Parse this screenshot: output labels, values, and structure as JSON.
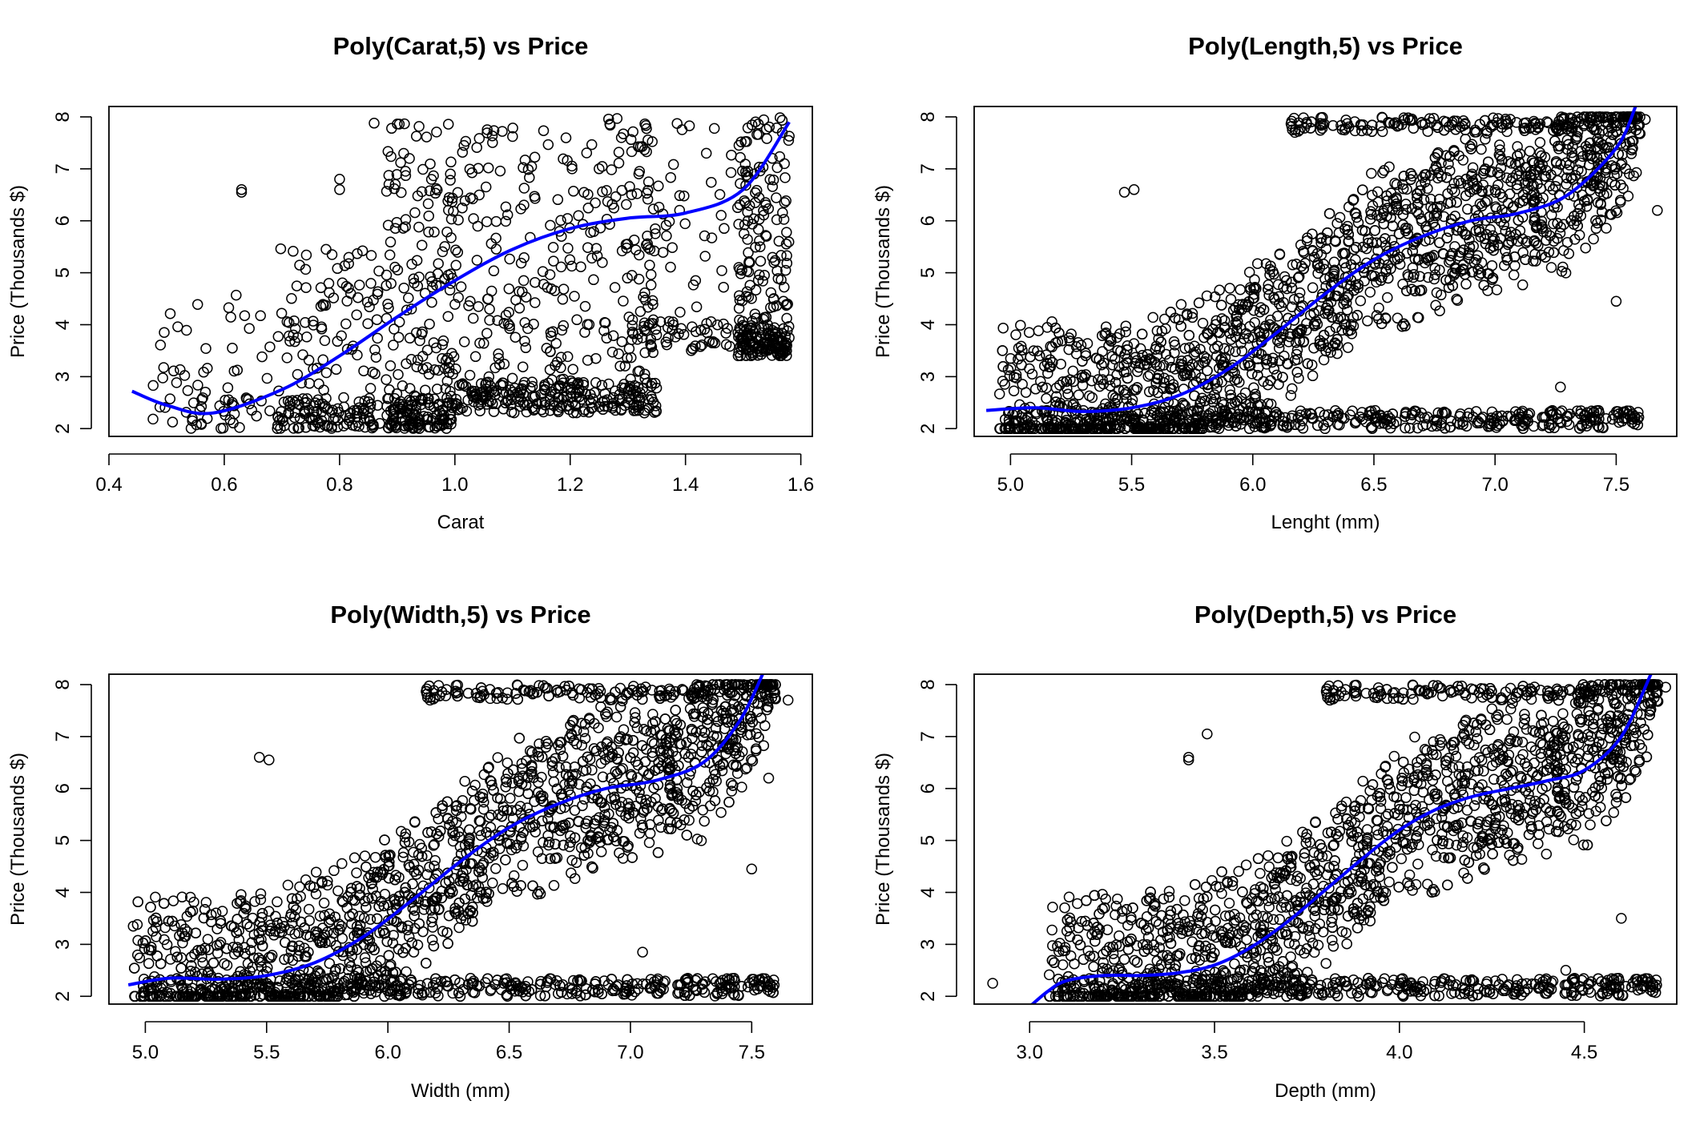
{
  "figure": {
    "background": "#ffffff",
    "point_color": "#000000",
    "fit_color": "#0000ff"
  },
  "chart_data": [
    {
      "type": "scatter",
      "title": "Poly(Carat,5) vs Price",
      "xlabel": "Carat",
      "ylabel": "Price (Thousands $)",
      "xlim": [
        0.4,
        1.62
      ],
      "ylim": [
        1.85,
        8.2
      ],
      "xticks": [
        "0.4",
        "0.6",
        "0.8",
        "1.0",
        "1.2",
        "1.4",
        "1.6"
      ],
      "yticks": [
        "2",
        "3",
        "4",
        "5",
        "6",
        "7",
        "8"
      ],
      "fit": {
        "name": "poly degree 5",
        "x": [
          0.44,
          0.5,
          0.58,
          0.7,
          0.8,
          0.9,
          1.0,
          1.1,
          1.2,
          1.3,
          1.4,
          1.5,
          1.58
        ],
        "y": [
          2.72,
          2.45,
          2.3,
          2.75,
          3.4,
          4.15,
          4.85,
          5.45,
          5.85,
          6.05,
          6.15,
          6.6,
          7.9
        ]
      },
      "clusters": [
        {
          "x": [
            0.47,
            0.68
          ],
          "y": [
            2.0,
            4.6
          ],
          "density": 0.08
        },
        {
          "x": [
            0.69,
            0.87
          ],
          "y": [
            2.0,
            5.5
          ],
          "density": 0.22
        },
        {
          "x": [
            0.88,
            1.0
          ],
          "y": [
            2.0,
            7.9
          ],
          "density": 0.3
        },
        {
          "x": [
            1.0,
            1.35
          ],
          "y": [
            2.3,
            8.0
          ],
          "density": 0.55
        },
        {
          "x": [
            1.3,
            1.48
          ],
          "y": [
            3.5,
            8.0
          ],
          "density": 0.12
        },
        {
          "x": [
            1.49,
            1.58
          ],
          "y": [
            3.4,
            8.0
          ],
          "density": 0.3
        }
      ],
      "outliers": [
        [
          0.63,
          6.6
        ],
        [
          0.63,
          6.55
        ],
        [
          0.86,
          7.88
        ],
        [
          0.8,
          6.8
        ],
        [
          0.8,
          6.6
        ],
        [
          1.57,
          4.45
        ],
        [
          1.3,
          2.5
        ]
      ]
    },
    {
      "type": "scatter",
      "title": "Poly(Length,5) vs Price",
      "xlabel": "Lenght (mm)",
      "ylabel": "Price (Thousands $)",
      "xlim": [
        4.85,
        7.75
      ],
      "ylim": [
        1.85,
        8.2
      ],
      "xticks": [
        "5.0",
        "5.5",
        "6.0",
        "6.5",
        "7.0",
        "7.5"
      ],
      "yticks": [
        "2",
        "3",
        "4",
        "5",
        "6",
        "7",
        "8"
      ],
      "fit": {
        "name": "poly degree 5",
        "x": [
          4.9,
          5.1,
          5.3,
          5.5,
          5.7,
          5.9,
          6.1,
          6.3,
          6.5,
          6.7,
          6.9,
          7.1,
          7.3,
          7.5,
          7.58
        ],
        "y": [
          2.35,
          2.4,
          2.33,
          2.4,
          2.65,
          3.15,
          3.85,
          4.6,
          5.25,
          5.7,
          6.0,
          6.15,
          6.5,
          7.4,
          8.2
        ]
      },
      "band": {
        "x_start": 4.95,
        "x_end": 7.6,
        "low_offset": -1.2,
        "high_offset": 1.4,
        "density": 1.0
      },
      "outliers": [
        [
          5.47,
          6.55
        ],
        [
          5.51,
          6.6
        ],
        [
          5.0,
          3.35
        ],
        [
          7.27,
          2.8
        ],
        [
          7.5,
          4.45
        ],
        [
          7.67,
          6.2
        ],
        [
          7.62,
          7.95
        ]
      ]
    },
    {
      "type": "scatter",
      "title": "Poly(Width,5) vs Price",
      "xlabel": "Width (mm)",
      "ylabel": "Price (Thousands $)",
      "xlim": [
        4.85,
        7.75
      ],
      "ylim": [
        1.85,
        8.2
      ],
      "xticks": [
        "5.0",
        "5.5",
        "6.0",
        "6.5",
        "7.0",
        "7.5"
      ],
      "yticks": [
        "2",
        "3",
        "4",
        "5",
        "6",
        "7",
        "8"
      ],
      "fit": {
        "name": "poly degree 5",
        "x": [
          4.93,
          5.1,
          5.3,
          5.5,
          5.7,
          5.9,
          6.1,
          6.3,
          6.5,
          6.7,
          6.9,
          7.1,
          7.3,
          7.45,
          7.55
        ],
        "y": [
          2.22,
          2.35,
          2.33,
          2.4,
          2.65,
          3.15,
          3.85,
          4.6,
          5.25,
          5.7,
          6.0,
          6.15,
          6.5,
          7.3,
          8.25
        ]
      },
      "band": {
        "x_start": 4.95,
        "x_end": 7.6,
        "low_offset": -1.2,
        "high_offset": 1.4,
        "density": 1.0
      },
      "outliers": [
        [
          5.47,
          6.6
        ],
        [
          5.51,
          6.55
        ],
        [
          4.95,
          3.35
        ],
        [
          7.05,
          2.85
        ],
        [
          7.5,
          4.45
        ],
        [
          7.57,
          6.2
        ],
        [
          7.65,
          7.7
        ]
      ]
    },
    {
      "type": "scatter",
      "title": "Poly(Depth,5) vs Price",
      "xlabel": "Depth (mm)",
      "ylabel": "Price (Thousands $)",
      "xlim": [
        2.85,
        4.75
      ],
      "ylim": [
        1.85,
        8.2
      ],
      "xticks": [
        "3.0",
        "3.5",
        "4.0",
        "4.5"
      ],
      "yticks": [
        "2",
        "3",
        "4",
        "5",
        "6",
        "7",
        "8"
      ],
      "fit": {
        "name": "poly degree 5",
        "x": [
          3.0,
          3.05,
          3.1,
          3.2,
          3.3,
          3.4,
          3.5,
          3.6,
          3.7,
          3.8,
          3.9,
          4.0,
          4.1,
          4.2,
          4.3,
          4.4,
          4.5,
          4.6,
          4.68
        ],
        "y": [
          1.8,
          2.1,
          2.3,
          2.4,
          2.4,
          2.45,
          2.6,
          2.95,
          3.45,
          4.05,
          4.65,
          5.2,
          5.6,
          5.85,
          6.0,
          6.15,
          6.35,
          7.0,
          8.2
        ]
      },
      "band": {
        "x_start": 3.05,
        "x_end": 4.7,
        "low_offset": -1.2,
        "high_offset": 1.4,
        "density": 1.0
      },
      "outliers": [
        [
          3.43,
          6.6
        ],
        [
          3.43,
          6.55
        ],
        [
          2.9,
          2.25
        ],
        [
          3.48,
          7.05
        ],
        [
          4.0,
          2.2
        ],
        [
          4.45,
          2.5
        ],
        [
          4.72,
          7.95
        ],
        [
          4.6,
          3.5
        ]
      ]
    }
  ]
}
